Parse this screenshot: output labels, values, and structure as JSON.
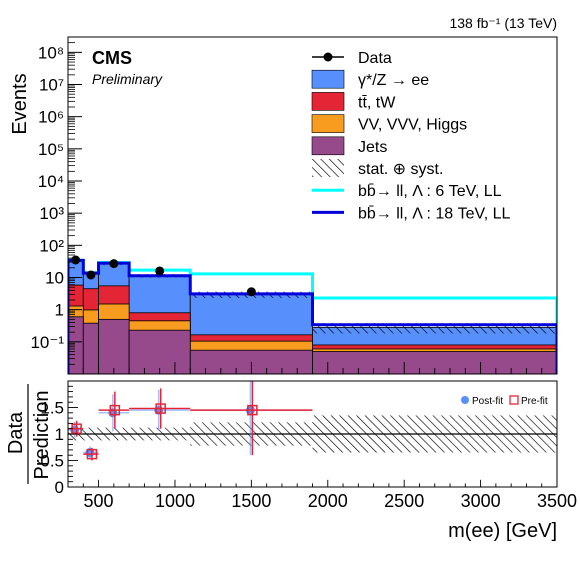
{
  "header": {
    "lumi_label": "138 fb⁻¹ (13 TeV)",
    "cms_label": "CMS",
    "prelim_label": "Preliminary"
  },
  "chart_data": [
    {
      "type": "bar",
      "panel": "main",
      "ylabel": "Events",
      "yscale": "log",
      "ylim": [
        0.01,
        300000000
      ],
      "xlim": [
        300,
        3500
      ],
      "y_tick_labels": [
        "10⁻¹",
        "1",
        "10",
        "10²",
        "10³",
        "10⁴",
        "10⁵",
        "10⁶",
        "10⁷",
        "10⁸"
      ],
      "bin_edges": [
        300,
        400,
        500,
        700,
        1100,
        1900,
        3500
      ],
      "series": [
        {
          "name": "γ*/Z → ee",
          "key": "dy",
          "color": "#5790fc",
          "values": [
            28,
            9.5,
            22,
            10.5,
            2.8,
            0.2
          ]
        },
        {
          "name": "tt̄, tW",
          "key": "ttbar",
          "color": "#e42536",
          "values": [
            4.5,
            3.5,
            4,
            0.35,
            0.06,
            0.02
          ]
        },
        {
          "name": "VV, VVV, Higgs",
          "key": "vv",
          "color": "#f89c20",
          "values": [
            0.7,
            0.6,
            1.0,
            0.22,
            0.05,
            0.01
          ]
        },
        {
          "name": "Jets",
          "key": "jets",
          "color": "#964a8b",
          "values": [
            0.6,
            0.38,
            0.5,
            0.23,
            0.055,
            0.05
          ]
        }
      ],
      "data": {
        "name": "Data",
        "points": [
          {
            "x": 350,
            "y": 35
          },
          {
            "x": 450,
            "y": 12
          },
          {
            "x": 600,
            "y": 27
          },
          {
            "x": 900,
            "y": 16
          },
          {
            "x": 1500,
            "y": 3.6
          }
        ]
      },
      "signals": [
        {
          "name": "bb̄→ ll, Λ : 6 TeV, LL",
          "color": "#00ffff",
          "values": [
            34,
            14,
            29,
            17,
            13,
            2.3
          ]
        },
        {
          "name": "bb̄→ ll, Λ : 18 TeV, LL",
          "color": "#0000dd",
          "values": [
            34,
            13.7,
            28,
            11.3,
            3.1,
            0.34
          ]
        }
      ],
      "uncertainty_label": "stat. ⊕ syst."
    },
    {
      "type": "scatter",
      "panel": "ratio",
      "ylabel_top": "Data",
      "ylabel_bottom": "Prediction",
      "xlabel": "m(ee) [GeV]",
      "xlim": [
        300,
        3500
      ],
      "ylim": [
        0,
        2
      ],
      "y_tick_labels": [
        "0",
        "0.5",
        "1",
        "1.5"
      ],
      "x_tick_labels": [
        "500",
        "1000",
        "1500",
        "2000",
        "2500",
        "3000",
        "3500"
      ],
      "series": [
        {
          "name": "Post-fit",
          "color": "#5790fc",
          "points": [
            {
              "x": 350,
              "y": 1.08,
              "xerr": 50,
              "yerr": 0.15
            },
            {
              "x": 450,
              "y": 0.65,
              "xerr": 50,
              "yerr": 0.12
            },
            {
              "x": 600,
              "y": 1.4,
              "xerr": 100,
              "yerr": 0.35
            },
            {
              "x": 900,
              "y": 1.45,
              "xerr": 200,
              "yerr": 0.38
            },
            {
              "x": 1500,
              "y": 1.45,
              "xerr": 400,
              "yerr": 0.85
            }
          ]
        },
        {
          "name": "Pre-fit",
          "color": "#e42536",
          "points": [
            {
              "x": 350,
              "y": 1.1,
              "xerr": 50,
              "yerr": 0.15
            },
            {
              "x": 450,
              "y": 0.62,
              "xerr": 50,
              "yerr": 0.12
            },
            {
              "x": 600,
              "y": 1.45,
              "xerr": 100,
              "yerr": 0.35
            },
            {
              "x": 900,
              "y": 1.48,
              "xerr": 200,
              "yerr": 0.38
            },
            {
              "x": 1500,
              "y": 1.45,
              "xerr": 400,
              "yerr": 0.85
            }
          ]
        }
      ]
    }
  ]
}
